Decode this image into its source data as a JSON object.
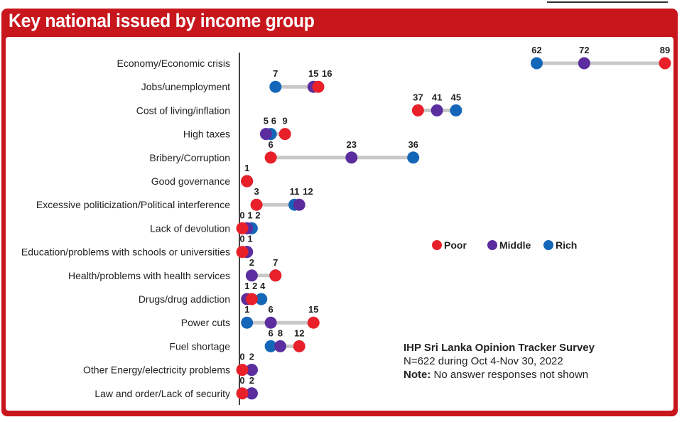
{
  "chart_data": {
    "type": "dot",
    "title": "Key national issued by income group",
    "series": [
      {
        "name": "Poor",
        "color": "#e8202a"
      },
      {
        "name": "Middle",
        "color": "#5b2d9e"
      },
      {
        "name": "Rich",
        "color": "#1466b8"
      }
    ],
    "categories": [
      "Economy/Economic crisis",
      "Jobs/unemployment",
      "Cost of living/inflation",
      "High taxes",
      "Bribery/Corruption",
      "Good governance",
      "Excessive politicization/Political interference",
      "Lack of devolution",
      "Education/problems with schools or universities",
      "Health/problems with health services",
      "Drugs/drug addiction",
      "Power cuts",
      "Fuel shortage",
      "Other Energy/electricity problems",
      "Law and order/Lack of security"
    ],
    "values": {
      "Poor": [
        89,
        16,
        37,
        9,
        6,
        1,
        3,
        0,
        0,
        7,
        2,
        15,
        12,
        0,
        0
      ],
      "Middle": [
        72,
        15,
        41,
        5,
        23,
        1,
        12,
        1,
        1,
        2,
        1,
        6,
        8,
        2,
        2
      ],
      "Rich": [
        62,
        7,
        45,
        6,
        36,
        1,
        11,
        2,
        1,
        7,
        4,
        1,
        6,
        2,
        2
      ]
    },
    "xlim": [
      0,
      89
    ],
    "legend_position": "right-middle"
  },
  "note": {
    "line1": "IHP Sri Lanka Opinion Tracker Survey",
    "line2": "N=622 during Oct 4-Nov 30, 2022",
    "line3_label": "Note:",
    "line3_text": " No answer responses not shown"
  }
}
